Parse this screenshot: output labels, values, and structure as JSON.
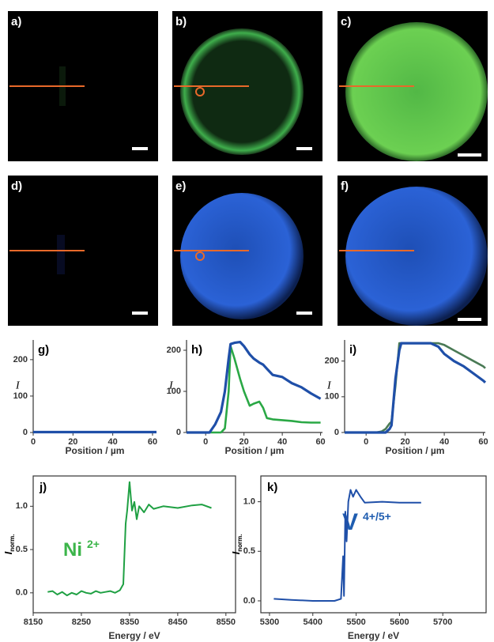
{
  "image_panels": [
    {
      "label": "a)"
    },
    {
      "label": "b)"
    },
    {
      "label": "c)"
    },
    {
      "label": "d)"
    },
    {
      "label": "e)"
    },
    {
      "label": "f)"
    }
  ],
  "chart_data": [
    {
      "type": "line",
      "title": "g)",
      "x_label": "Position / µm",
      "y_label": "I",
      "xlim": [
        0,
        62
      ],
      "ylim": [
        0,
        254
      ],
      "xticks": [
        0,
        20,
        40,
        60
      ],
      "yticks": [
        0,
        100,
        200
      ],
      "x": [
        0,
        62
      ],
      "series": [
        {
          "color": "#1f4fa8",
          "values": [
            1,
            1
          ]
        }
      ]
    },
    {
      "type": "line",
      "title": "h)",
      "x_label": "Position / µm",
      "y_label": "I",
      "xlim": [
        -10,
        61
      ],
      "ylim": [
        0,
        225
      ],
      "xticks": [
        0,
        20,
        40,
        60
      ],
      "yticks": [
        0,
        100,
        200
      ],
      "x": [
        -10,
        0,
        2,
        5,
        8,
        10,
        12,
        13,
        15,
        18,
        20,
        23,
        25,
        28,
        30,
        32,
        35,
        40,
        45,
        50,
        55,
        60
      ],
      "series": [
        {
          "color": "#2aa845",
          "values": [
            0,
            0,
            0,
            0,
            0,
            10,
            100,
            210,
            180,
            130,
            100,
            65,
            70,
            75,
            60,
            35,
            32,
            30,
            28,
            25,
            24,
            24
          ]
        },
        {
          "color": "#1f4fa8",
          "values": [
            0,
            0,
            0,
            20,
            50,
            100,
            180,
            215,
            218,
            220,
            210,
            190,
            180,
            170,
            165,
            155,
            140,
            135,
            120,
            110,
            95,
            82
          ]
        }
      ]
    },
    {
      "type": "line",
      "title": "i)",
      "x_label": "Position / µm",
      "y_label": "I",
      "xlim": [
        -11,
        61
      ],
      "ylim": [
        0,
        259
      ],
      "xticks": [
        0,
        20,
        40,
        60
      ],
      "yticks": [
        0,
        100,
        200
      ],
      "x": [
        -11,
        0,
        5,
        8,
        10,
        12,
        13,
        15,
        17,
        18,
        20,
        25,
        30,
        33,
        37,
        40,
        45,
        50,
        55,
        60,
        61
      ],
      "series": [
        {
          "color": "#4a7a55",
          "values": [
            0,
            0,
            0,
            3,
            10,
            25,
            30,
            130,
            250,
            250,
            250,
            250,
            250,
            250,
            250,
            245,
            230,
            215,
            200,
            185,
            180
          ]
        },
        {
          "color": "#1f4fa8",
          "values": [
            0,
            0,
            0,
            0,
            0,
            10,
            20,
            150,
            230,
            250,
            250,
            250,
            250,
            250,
            240,
            220,
            200,
            185,
            165,
            145,
            140
          ]
        }
      ]
    },
    {
      "type": "line",
      "title": "j)",
      "x_label": "Energy / eV",
      "y_label": "I",
      "y_label_sub": "norm.",
      "annotation": "Ni",
      "annotation_sup": "2+",
      "annotation_color": "#3cb54a",
      "xlim": [
        8150,
        8570
      ],
      "ylim": [
        -0.23,
        1.35
      ],
      "xticks": [
        8150,
        8250,
        8350,
        8450,
        8550
      ],
      "yticks": [
        {
          "value": 0,
          "label": "0.0"
        },
        {
          "value": 0.5,
          "label": "0.5"
        },
        {
          "value": 1,
          "label": "1.0"
        }
      ],
      "x": [
        8180,
        8190,
        8200,
        8210,
        8220,
        8230,
        8240,
        8250,
        8260,
        8270,
        8280,
        8290,
        8300,
        8310,
        8320,
        8330,
        8337,
        8342,
        8345,
        8350,
        8355,
        8360,
        8365,
        8370,
        8380,
        8390,
        8400,
        8420,
        8450,
        8480,
        8500,
        8520
      ],
      "series": [
        {
          "color": "#1fa043",
          "values": [
            0.01,
            0.02,
            -0.02,
            0.01,
            -0.03,
            0.0,
            -0.02,
            0.02,
            0.0,
            -0.01,
            0.02,
            0.0,
            0.01,
            0.02,
            0.0,
            0.03,
            0.1,
            0.8,
            0.95,
            1.28,
            0.95,
            1.05,
            0.85,
            1.0,
            0.93,
            1.02,
            0.97,
            1.0,
            0.98,
            1.01,
            1.02,
            0.98
          ]
        }
      ]
    },
    {
      "type": "line",
      "title": "k)",
      "x_label": "Energy / eV",
      "y_label": "I",
      "y_label_sub": "norm.",
      "annotation": "V",
      "annotation_sup": "4+/5+",
      "annotation_color": "#1f5db0",
      "xlim": [
        5280,
        5800
      ],
      "ylim": [
        -0.12,
        1.26
      ],
      "xticks": [
        5300,
        5400,
        5500,
        5600,
        5700
      ],
      "yticks": [
        {
          "value": 0,
          "label": "0.0"
        },
        {
          "value": 0.5,
          "label": "0.5"
        },
        {
          "value": 1,
          "label": "1.0"
        }
      ],
      "x": [
        5310,
        5350,
        5400,
        5450,
        5465,
        5470,
        5472,
        5475,
        5478,
        5482,
        5487,
        5493,
        5500,
        5510,
        5520,
        5560,
        5600,
        5650
      ],
      "series": [
        {
          "color": "#1f4fa8",
          "values": [
            0.02,
            0.01,
            0.0,
            0.0,
            0.02,
            0.45,
            0.05,
            0.9,
            0.6,
            1.0,
            1.12,
            1.05,
            1.12,
            1.05,
            0.99,
            1.0,
            0.99,
            0.99
          ]
        }
      ]
    }
  ]
}
